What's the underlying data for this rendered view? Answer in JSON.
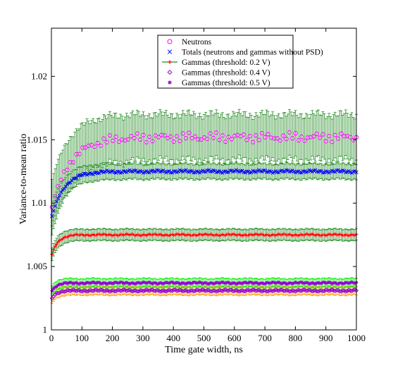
{
  "chart_data": {
    "type": "scatter",
    "xlabel": "Time gate width, ns",
    "ylabel": "Variance-to-mean ratio",
    "xlim": [
      0,
      1000
    ],
    "ylim": [
      1,
      1.0238
    ],
    "xticks": [
      0,
      100,
      200,
      300,
      400,
      500,
      600,
      700,
      800,
      900,
      1000
    ],
    "yticks": [
      1,
      1.005,
      1.01,
      1.015,
      1.02
    ],
    "xtick_labels": [
      "0",
      "100",
      "200",
      "300",
      "400",
      "500",
      "600",
      "700",
      "800",
      "900",
      "1000"
    ],
    "ytick_labels": [
      "1",
      "1.005",
      "1.01",
      "1.015",
      "1.02"
    ],
    "grid": false,
    "legend_position": "top-right",
    "series": [
      {
        "name": "Neutrons",
        "marker": "circle",
        "color": "#ff00ff",
        "plateau": 1.0152,
        "start": 1.0095,
        "rise_ns": 60,
        "jitter": 0.0004,
        "error_color": "#228b22",
        "error": 0.0018,
        "error_start": 0.0022
      },
      {
        "name": "Totals (neutrons and gammas without PSD)",
        "marker": "x",
        "color": "#0000ff",
        "plateau": 1.0125,
        "start": 1.0088,
        "rise_ns": 40,
        "jitter": 0.00012,
        "error_color": "#228b22",
        "error": 0.0006,
        "error_start": 0.0008
      },
      {
        "name": "Gammas (threshold: 0.2 V)",
        "marker": "plus",
        "color": "#ff0000",
        "line_color": "#228b22",
        "plateau": 1.0075,
        "start": 1.0058,
        "rise_ns": 20,
        "jitter": 8e-05,
        "error_color": "#228b22",
        "error": 0.00045,
        "error_start": 0.0005
      },
      {
        "name": "Gammas (threshold: 0.4 V)",
        "marker": "diamond",
        "color": "#9400d3",
        "plateau": 1.0031,
        "start": 1.0024,
        "rise_ns": 15,
        "jitter": 8e-05,
        "error_color": "#ff9900",
        "error": 0.00035,
        "error_start": 0.0004
      },
      {
        "name": "Gammas (threshold: 0.5 V)",
        "marker": "asterisk",
        "color": "#9400d3",
        "plateau": 1.0037,
        "start": 1.003,
        "rise_ns": 15,
        "jitter": 8e-05,
        "error_color": "#00ee00",
        "error": 0.00035,
        "error_start": 0.0004
      }
    ]
  }
}
